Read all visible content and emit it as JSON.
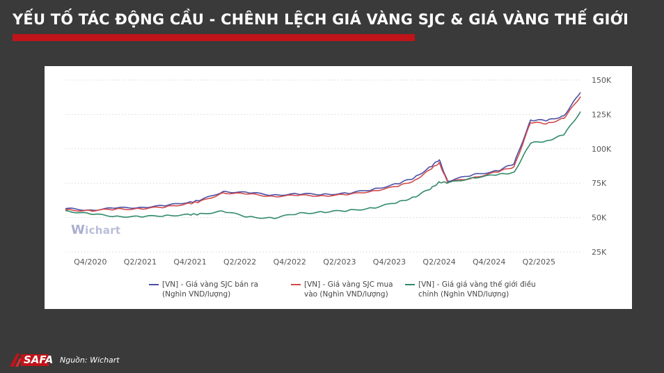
{
  "header": {
    "title": "YẾU TỐ TÁC ĐỘNG CẦU - CHÊNH LỆCH GIÁ VÀNG SJC & GIÁ VÀNG THẾ GIỚI",
    "accent_color": "#c0141a"
  },
  "watermark": {
    "prefix": "W",
    "text": "ichart"
  },
  "footer": {
    "logo_text": "SAFA",
    "source": "Nguồn: Wichart"
  },
  "chart_data": {
    "type": "line",
    "title": "",
    "xlabel": "",
    "ylabel": "",
    "ylim": [
      25,
      150
    ],
    "y_ticks": [
      25,
      50,
      75,
      100,
      125,
      150
    ],
    "y_tick_labels": [
      "25K",
      "50K",
      "75K",
      "100K",
      "125K",
      "150K"
    ],
    "x_ticks": [
      "Q4/2020",
      "Q2/2021",
      "Q4/2021",
      "Q2/2022",
      "Q4/2022",
      "Q2/2023",
      "Q4/2023",
      "Q2/2024",
      "Q4/2024",
      "Q2/2025"
    ],
    "grid": "horizontal-dotted",
    "legend_position": "bottom",
    "x": [
      "2020-08",
      "2020-11",
      "2021-02",
      "2021-05",
      "2021-08",
      "2021-11",
      "2021-12",
      "2022-03",
      "2022-06",
      "2022-09",
      "2022-12",
      "2023-03",
      "2023-06",
      "2023-09",
      "2023-12",
      "2024-02",
      "2024-04",
      "2024-05",
      "2024-06",
      "2024-09",
      "2024-12",
      "2025-02",
      "2025-04",
      "2025-06",
      "2025-08",
      "2025-10"
    ],
    "series": [
      {
        "name": "[VN] - Giá vàng SJC bán ra (Nghìn VND/lượng)",
        "color": "#4b4fa3",
        "values": [
          56.5,
          55.5,
          56.8,
          57.5,
          58.5,
          61.5,
          62,
          69,
          68,
          66.5,
          67,
          67,
          67.5,
          70.5,
          74.5,
          79,
          87,
          92,
          76.5,
          81,
          84,
          89,
          121,
          120.5,
          124,
          141
        ]
      },
      {
        "name": "[VN] - Giá vàng SJC mua vào (Nghìn VND/lượng)",
        "color": "#d24a4a",
        "values": [
          55.5,
          55,
          56,
          56.5,
          57.5,
          60.5,
          61,
          68,
          67,
          65.5,
          66,
          66,
          66.5,
          69.5,
          72.5,
          77,
          85,
          90,
          75.5,
          79,
          83,
          87,
          119,
          118.5,
          122,
          138
        ]
      },
      {
        "name": "[VN] - Giá giá vàng thế giới điều chỉnh (Nghìn VND/lượng)",
        "color": "#2f8a6a",
        "values": [
          55,
          52.5,
          51,
          50.5,
          51.5,
          52,
          52.5,
          54.5,
          50.5,
          49.5,
          53,
          54,
          55,
          57,
          61,
          65,
          71,
          76,
          75,
          79,
          81,
          83,
          104,
          106,
          110,
          127
        ]
      }
    ]
  }
}
